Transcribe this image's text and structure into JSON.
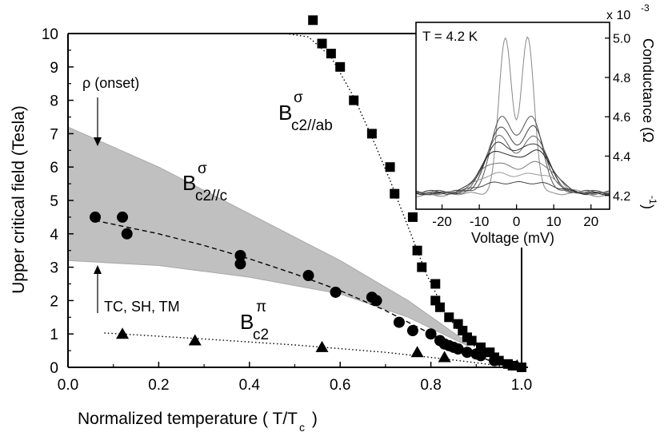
{
  "chart_data": [
    {
      "type": "scatter",
      "title": "",
      "xlabel": "Normalized temperature ( T/T",
      "xlabel_sub": "c",
      "xlabel_tail": " )",
      "ylabel": "Upper critical field (Tesla)",
      "xlim": [
        0.0,
        1.05
      ],
      "ylim": [
        0,
        10
      ],
      "xticks": [
        "0.0",
        "0.2",
        "0.4",
        "0.6",
        "0.8",
        "1.0"
      ],
      "xtick_values": [
        0.0,
        0.2,
        0.4,
        0.6,
        0.8,
        1.0
      ],
      "yticks": [
        "0",
        "1",
        "2",
        "3",
        "4",
        "5",
        "6",
        "7",
        "8",
        "9",
        "10"
      ],
      "ytick_values": [
        0,
        1,
        2,
        3,
        4,
        5,
        6,
        7,
        8,
        9,
        10
      ],
      "band": {
        "name": "shaded region",
        "color": "#c0c0c0",
        "upper": [
          [
            0.0,
            7.2
          ],
          [
            0.2,
            6.0
          ],
          [
            0.4,
            4.6
          ],
          [
            0.6,
            3.2
          ],
          [
            0.75,
            2.0
          ],
          [
            0.88,
            0.75
          ]
        ],
        "lower": [
          [
            0.0,
            3.2
          ],
          [
            0.2,
            3.05
          ],
          [
            0.4,
            2.7
          ],
          [
            0.6,
            2.2
          ],
          [
            0.75,
            1.5
          ],
          [
            0.88,
            0.65
          ]
        ]
      },
      "series": [
        {
          "name": "B c2//ab sigma",
          "marker": "square",
          "label_main": "B",
          "label_sup": "σ",
          "label_sub": "c2//ab",
          "points": [
            [
              0.54,
              10.4
            ],
            [
              0.56,
              9.7
            ],
            [
              0.58,
              9.4
            ],
            [
              0.6,
              9.0
            ],
            [
              0.63,
              8.0
            ],
            [
              0.67,
              7.0
            ],
            [
              0.71,
              6.0
            ],
            [
              0.72,
              5.2
            ],
            [
              0.76,
              4.5
            ],
            [
              0.77,
              3.5
            ],
            [
              0.78,
              3.0
            ],
            [
              0.81,
              2.5
            ],
            [
              0.81,
              2.0
            ],
            [
              0.82,
              1.8
            ],
            [
              0.84,
              1.5
            ],
            [
              0.86,
              1.3
            ],
            [
              0.87,
              1.1
            ],
            [
              0.88,
              0.9
            ],
            [
              0.89,
              0.8
            ],
            [
              0.91,
              0.6
            ],
            [
              0.93,
              0.45
            ],
            [
              0.94,
              0.3
            ],
            [
              0.95,
              0.2
            ],
            [
              0.97,
              0.1
            ],
            [
              0.98,
              0.05
            ],
            [
              1.0,
              0.0
            ]
          ]
        },
        {
          "name": "B c2//c sigma",
          "marker": "circle",
          "label_main": "B",
          "label_sup": "σ",
          "label_sub": "c2//c",
          "points": [
            [
              0.06,
              4.5
            ],
            [
              0.12,
              4.5
            ],
            [
              0.13,
              4.0
            ],
            [
              0.38,
              3.35
            ],
            [
              0.38,
              3.1
            ],
            [
              0.53,
              2.75
            ],
            [
              0.59,
              2.25
            ],
            [
              0.67,
              2.1
            ],
            [
              0.68,
              2.0
            ],
            [
              0.73,
              1.35
            ],
            [
              0.76,
              1.1
            ],
            [
              0.8,
              1.0
            ],
            [
              0.82,
              0.8
            ],
            [
              0.83,
              0.7
            ],
            [
              0.84,
              0.65
            ],
            [
              0.85,
              0.6
            ],
            [
              0.86,
              0.55
            ],
            [
              0.88,
              0.45
            ],
            [
              0.9,
              0.4
            ],
            [
              0.91,
              0.35
            ],
            [
              0.94,
              0.2
            ]
          ]
        },
        {
          "name": "B c2 pi",
          "marker": "triangle",
          "label_main": "B",
          "label_sup": "π",
          "label_sub": "c2",
          "points": [
            [
              0.12,
              1.0
            ],
            [
              0.28,
              0.8
            ],
            [
              0.56,
              0.6
            ],
            [
              0.77,
              0.45
            ],
            [
              0.83,
              0.3
            ],
            [
              0.99,
              0.05
            ]
          ]
        }
      ],
      "fits": [
        {
          "name": "B c2//ab sigma fit",
          "style": "dotted",
          "points": [
            [
              0.48,
              10.0
            ],
            [
              0.53,
              9.9
            ],
            [
              0.58,
              9.3
            ],
            [
              0.63,
              8.1
            ],
            [
              0.67,
              6.9
            ],
            [
              0.71,
              5.6
            ],
            [
              0.75,
              4.2
            ],
            [
              0.79,
              2.8
            ],
            [
              0.83,
              1.7
            ],
            [
              0.87,
              0.9
            ],
            [
              0.92,
              0.4
            ],
            [
              0.97,
              0.1
            ],
            [
              1.0,
              0.0
            ]
          ]
        },
        {
          "name": "B c2//c sigma fit",
          "style": "dashed",
          "points": [
            [
              0.06,
              4.4
            ],
            [
              0.2,
              4.0
            ],
            [
              0.3,
              3.65
            ],
            [
              0.4,
              3.25
            ],
            [
              0.5,
              2.8
            ],
            [
              0.6,
              2.3
            ],
            [
              0.7,
              1.7
            ],
            [
              0.8,
              1.0
            ],
            [
              0.88,
              0.45
            ],
            [
              0.94,
              0.15
            ],
            [
              1.0,
              0.0
            ]
          ]
        },
        {
          "name": "B c2 pi fit",
          "style": "dotted",
          "points": [
            [
              0.08,
              1.03
            ],
            [
              0.3,
              0.85
            ],
            [
              0.5,
              0.67
            ],
            [
              0.7,
              0.45
            ],
            [
              0.85,
              0.22
            ],
            [
              0.95,
              0.05
            ],
            [
              1.0,
              0.0
            ]
          ]
        }
      ],
      "annotations": {
        "onset_text": "ρ (onset)",
        "lower_text": "TC, SH, TM"
      }
    },
    {
      "type": "line",
      "title": "",
      "annotation": "T = 4.2 K",
      "xlabel": "Voltage (mV)",
      "ylabel": "Conductance (Ω",
      "ylabel_sup": "-1",
      "ylabel_tail": ")",
      "scale_label": "x 10",
      "scale_exp": "-3",
      "xlim": [
        -27,
        25
      ],
      "ylim": [
        4.13,
        5.08
      ],
      "xticks": [
        "-20",
        "-10",
        "0",
        "10",
        "20"
      ],
      "xtick_values": [
        -20,
        -10,
        0,
        10,
        20
      ],
      "yticks": [
        "4.2",
        "4.4",
        "4.6",
        "4.8",
        "5.0"
      ],
      "ytick_values": [
        4.2,
        4.4,
        4.6,
        4.8,
        5.0
      ],
      "curves": [
        {
          "name": "curve-1",
          "color": "#888888",
          "base": 4.21,
          "peak": 0.83,
          "sep": 3.0,
          "width": 2.5
        },
        {
          "name": "curve-2",
          "color": "#555555",
          "base": 4.22,
          "peak": 0.4,
          "sep": 4.0,
          "width": 4.0
        },
        {
          "name": "curve-3",
          "color": "#444444",
          "base": 4.22,
          "peak": 0.34,
          "sep": 4.5,
          "width": 4.5
        },
        {
          "name": "curve-4",
          "color": "#666666",
          "base": 4.21,
          "peak": 0.3,
          "sep": 5.0,
          "width": 5.0
        },
        {
          "name": "curve-5",
          "color": "#333333",
          "base": 4.21,
          "peak": 0.26,
          "sep": 5.0,
          "width": 5.5
        },
        {
          "name": "curve-6",
          "color": "#222222",
          "base": 4.21,
          "peak": 0.22,
          "sep": 5.5,
          "width": 6.0
        },
        {
          "name": "curve-7",
          "color": "#777777",
          "base": 4.2,
          "peak": 0.17,
          "sep": 6.0,
          "width": 6.5
        },
        {
          "name": "curve-8",
          "color": "#999999",
          "base": 4.21,
          "peak": 0.1,
          "sep": 6.0,
          "width": 7.0
        },
        {
          "name": "curve-9",
          "color": "#444444",
          "base": 4.21,
          "peak": 0.05,
          "sep": 6.0,
          "width": 8.0
        }
      ]
    }
  ]
}
